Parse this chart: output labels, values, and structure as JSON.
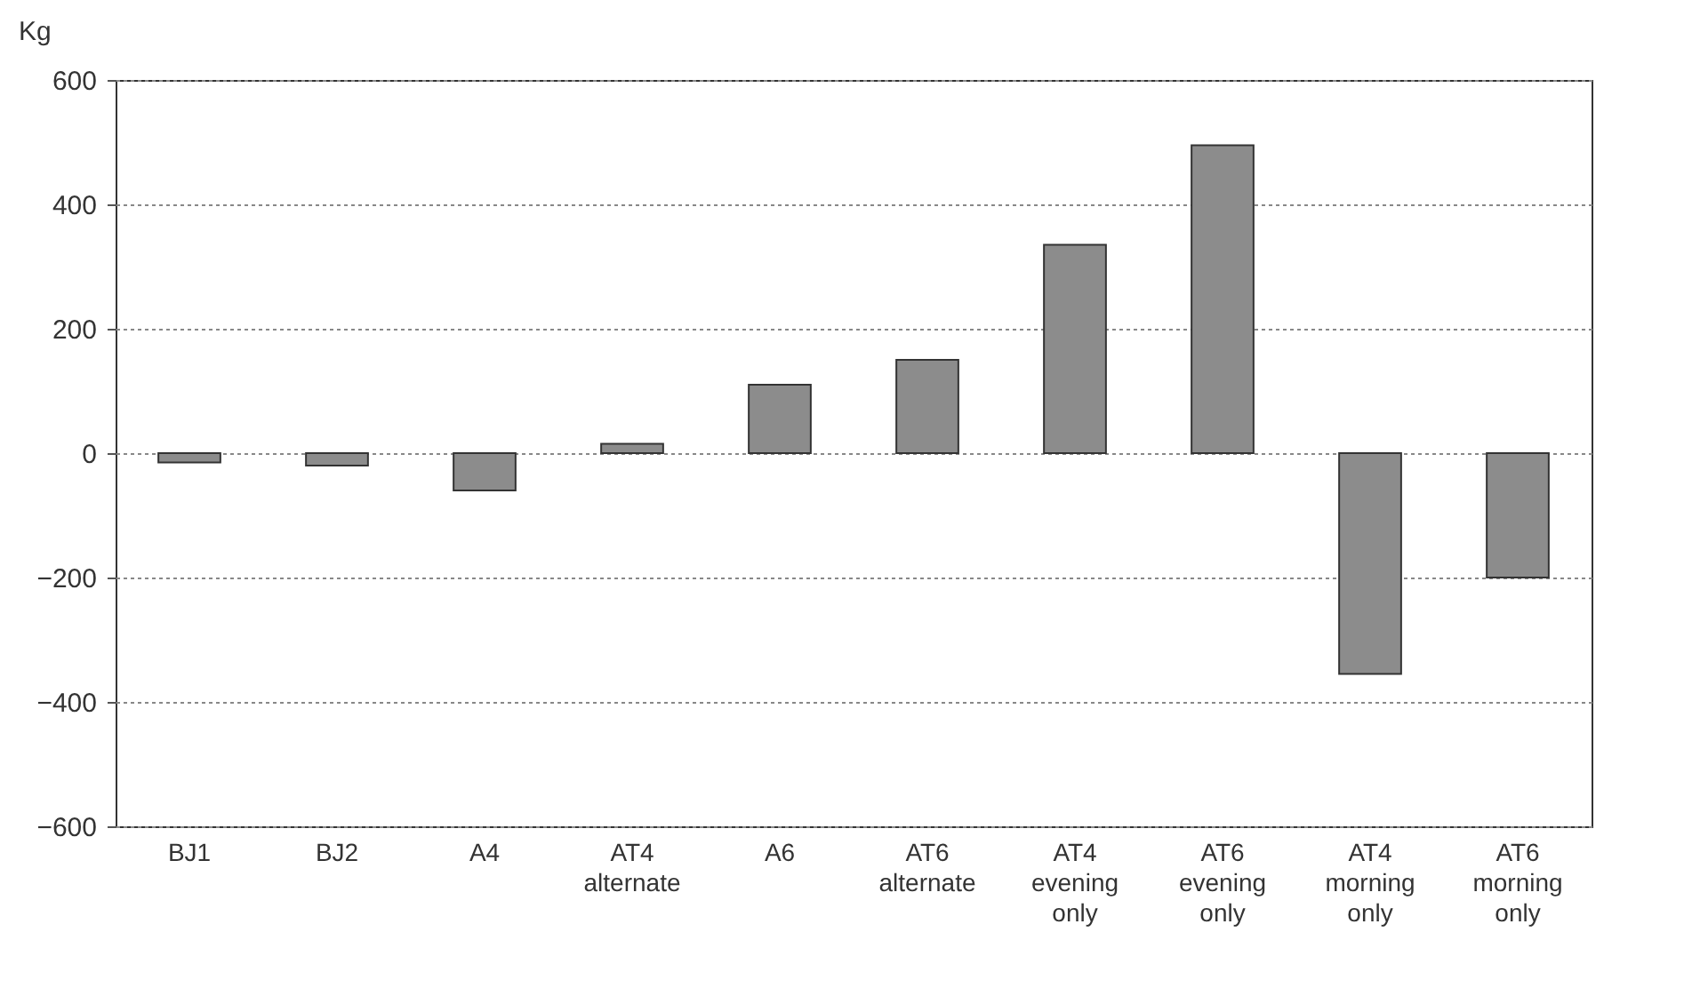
{
  "chart_data": {
    "type": "bar",
    "ylabel": "Kg",
    "categories": [
      "BJ1",
      "BJ2",
      "A4",
      "AT4\nalternate",
      "A6",
      "AT6\nalternate",
      "AT4\nevening\nonly",
      "AT6\nevening\nonly",
      "AT4\nmorning\nonly",
      "AT6\nmorning\nonly"
    ],
    "values": [
      -15,
      -20,
      -60,
      15,
      110,
      150,
      335,
      495,
      -355,
      -200
    ],
    "color": "#8c8c8c",
    "ylim": [
      -600,
      600
    ],
    "yticks": [
      -600,
      -400,
      -200,
      0,
      200,
      400,
      600
    ],
    "grid": "y"
  }
}
